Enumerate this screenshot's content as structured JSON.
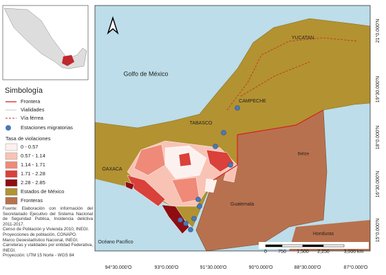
{
  "legend": {
    "title": "Simbología",
    "lines": [
      "Frontera",
      "Vialidades",
      "Vía férrea"
    ],
    "stations": "Estaciones migratorias",
    "rate_title": "Tasa de violaciones",
    "classes": [
      "0 - 0.57",
      "0.57 - 1.14",
      "1.14 - 1.71",
      "1.71 - 2.28",
      "2.28 - 2.85"
    ],
    "areas": [
      "Estados de México",
      "Fronteras"
    ]
  },
  "source": [
    "Fuente: Elaboración con información del Secretariado Ejecutivo del Sistema Nacional de Seguridad Publica, Incidencia delictiva 2011-2017.",
    "Censo de Población y Vivienda 2010, INEGI.",
    "Proyecciones de población, CONAPO.",
    "Marco Geoestadístico Nacional, INEGI.",
    "Carreteras y vialidades por entidad Federativa, INEGI.",
    "Proyección: UTM 15 Norte - WGS 84"
  ],
  "map_labels": [
    "Golfo de México",
    "YUCATAN",
    "CAMPECHE",
    "TABASCO",
    "OAXACA",
    "Belize",
    "Guatemala",
    "Honduras",
    "Océano Pacífico"
  ],
  "lat_labels": [
    "21°0.000'N",
    "19°30.000'N",
    "18°0.000'N",
    "16°30.000'N",
    "15°0.000'N"
  ],
  "lon_labels": [
    "94°30.000'O",
    "93°0.000'O",
    "91°30.000'O",
    "90°0.000'O",
    "88°30.000'O",
    "87°0.000'O"
  ],
  "scale_bar": [
    "0",
    "750",
    "1,500",
    "2,250",
    "3,000 km"
  ]
}
